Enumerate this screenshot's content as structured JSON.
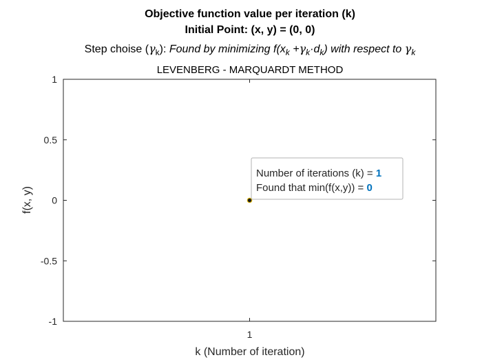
{
  "chart_data": {
    "type": "scatter",
    "title_line1": "Objective function value per iteration (k)",
    "title_line2": "Initial Point: (x, y) = (0, 0)",
    "title_line3": {
      "prefix": "Step choise (",
      "gamma": "γ",
      "gamma_sub": "k",
      "mid": "):  ",
      "found": "Found by minimizing f(x",
      "sub_k": "k",
      "plus": " +",
      "cdot_d": "·d",
      "close": ") with respect to ",
      "gamma2": "γ",
      "gamma2_sub": "k"
    },
    "subtitle": "LEVENBERG - MARQUARDT METHOD",
    "xlabel": "k (Number of iteration)",
    "ylabel": "f(x, y)",
    "xlim": [
      0,
      2
    ],
    "ylim": [
      -1,
      1
    ],
    "xticks": [
      1
    ],
    "xtick_labels": [
      "1"
    ],
    "yticks": [
      1,
      0.5,
      0,
      -0.5,
      -1
    ],
    "ytick_labels": [
      "1",
      "0.5",
      "0",
      "-0.5",
      "-1"
    ],
    "grid": false,
    "x": [
      1
    ],
    "y": [
      0
    ],
    "marker_color": "#1a1a1a",
    "marker_edge_color": "#d9b100",
    "annotation": {
      "line1_label": "Number of iterations (k) = ",
      "line1_value": "1",
      "line2_label": "Found that min(f(x,y)) = ",
      "line2_value": "0",
      "value_color": "#0072bd"
    }
  }
}
